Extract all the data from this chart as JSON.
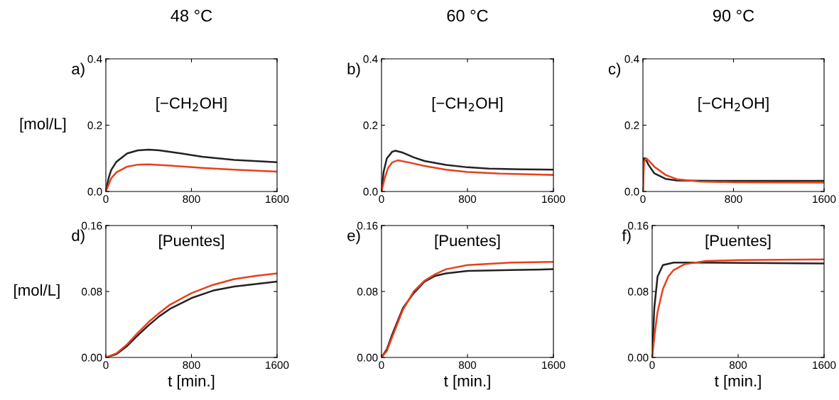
{
  "chart_data": [
    {
      "type": "line",
      "title": "48 °C",
      "ylabel": "[mol/L]",
      "annotations": [
        "a)",
        "[−CH$_{2}$OH]"
      ],
      "xlim": [
        0,
        1600
      ],
      "xticks": [
        0,
        800,
        1600
      ],
      "ylim": [
        0,
        0.4
      ],
      "yticks": [
        {
          "value": 0,
          "label": "0.0"
        },
        {
          "value": 0.2,
          "label": "0.2"
        },
        {
          "value": 0.4,
          "label": "0.4"
        }
      ],
      "grid": false,
      "legend": false,
      "series": [
        {
          "color": "#222222",
          "x": [
            0,
            25,
            50,
            100,
            200,
            300,
            400,
            500,
            700,
            900,
            1200,
            1600
          ],
          "values": [
            0,
            0.04,
            0.065,
            0.09,
            0.115,
            0.124,
            0.126,
            0.124,
            0.115,
            0.105,
            0.095,
            0.088
          ]
        },
        {
          "color": "#e8401c",
          "x": [
            0,
            50,
            100,
            200,
            300,
            400,
            600,
            900,
            1200,
            1600
          ],
          "values": [
            0,
            0.04,
            0.058,
            0.075,
            0.081,
            0.082,
            0.078,
            0.071,
            0.066,
            0.06
          ]
        }
      ]
    },
    {
      "type": "line",
      "title": "60 °C",
      "annotations": [
        "b)",
        "[−CH$_{2}$OH]"
      ],
      "xlim": [
        0,
        1600
      ],
      "xticks": [
        0,
        800,
        1600
      ],
      "ylim": [
        0,
        0.4
      ],
      "yticks": [
        {
          "value": 0,
          "label": "0.0"
        },
        {
          "value": 0.2,
          "label": "0.2"
        },
        {
          "value": 0.4,
          "label": "0.4"
        }
      ],
      "grid": false,
      "legend": false,
      "series": [
        {
          "color": "#222222",
          "x": [
            0,
            20,
            50,
            100,
            130,
            200,
            300,
            400,
            600,
            800,
            1000,
            1300,
            1600
          ],
          "values": [
            0,
            0.06,
            0.1,
            0.12,
            0.123,
            0.117,
            0.103,
            0.092,
            0.08,
            0.073,
            0.069,
            0.067,
            0.066
          ]
        },
        {
          "color": "#e8401c",
          "x": [
            0,
            30,
            60,
            100,
            150,
            250,
            400,
            600,
            800,
            1100,
            1600
          ],
          "values": [
            0,
            0.04,
            0.07,
            0.088,
            0.094,
            0.088,
            0.077,
            0.066,
            0.059,
            0.054,
            0.05
          ]
        }
      ]
    },
    {
      "type": "line",
      "title": "90 °C",
      "annotations": [
        "c)",
        "[−CH$_{2}$OH]"
      ],
      "xlim": [
        0,
        1600
      ],
      "xticks": [
        0,
        800,
        1600
      ],
      "ylim": [
        0,
        0.4
      ],
      "yticks": [
        {
          "value": 0,
          "label": "0.0"
        },
        {
          "value": 0.2,
          "label": "0.2"
        },
        {
          "value": 0.4,
          "label": "0.4"
        }
      ],
      "grid": false,
      "legend": false,
      "series": [
        {
          "color": "#222222",
          "x": [
            0,
            5,
            20,
            50,
            100,
            200,
            300,
            600,
            1600
          ],
          "values": [
            0,
            0.1,
            0.1,
            0.08,
            0.055,
            0.038,
            0.033,
            0.032,
            0.032
          ]
        },
        {
          "color": "#e8401c",
          "x": [
            0,
            10,
            30,
            60,
            100,
            200,
            300,
            500,
            800,
            1600
          ],
          "values": [
            0,
            0.09,
            0.1,
            0.09,
            0.075,
            0.05,
            0.037,
            0.03,
            0.028,
            0.027
          ]
        }
      ]
    },
    {
      "type": "line",
      "xlabel": "t [min.]",
      "ylabel": "[mol/L]",
      "annotations": [
        "d)",
        "[Puentes]"
      ],
      "xlim": [
        0,
        1600
      ],
      "xticks": [
        0,
        800,
        1600
      ],
      "ylim": [
        0,
        0.16
      ],
      "yticks": [
        {
          "value": 0,
          "label": "0.00"
        },
        {
          "value": 0.08,
          "label": "0.08"
        },
        {
          "value": 0.16,
          "label": "0.16"
        }
      ],
      "grid": false,
      "legend": false,
      "series": [
        {
          "color": "#222222",
          "x": [
            0,
            100,
            200,
            300,
            400,
            500,
            600,
            800,
            1000,
            1200,
            1400,
            1600
          ],
          "values": [
            0,
            0.004,
            0.014,
            0.027,
            0.039,
            0.05,
            0.059,
            0.072,
            0.081,
            0.086,
            0.089,
            0.092
          ]
        },
        {
          "color": "#e8401c",
          "x": [
            0,
            100,
            200,
            300,
            400,
            500,
            600,
            800,
            1000,
            1200,
            1400,
            1600
          ],
          "values": [
            0,
            0.005,
            0.016,
            0.03,
            0.043,
            0.054,
            0.064,
            0.078,
            0.088,
            0.095,
            0.099,
            0.102
          ]
        }
      ]
    },
    {
      "type": "line",
      "xlabel": "t [min.]",
      "annotations": [
        "e)",
        "[Puentes]"
      ],
      "xlim": [
        0,
        1600
      ],
      "xticks": [
        0,
        800,
        1600
      ],
      "ylim": [
        0,
        0.16
      ],
      "yticks": [
        {
          "value": 0,
          "label": "0.00"
        },
        {
          "value": 0.08,
          "label": "0.08"
        },
        {
          "value": 0.16,
          "label": "0.16"
        }
      ],
      "grid": false,
      "legend": false,
      "series": [
        {
          "color": "#222222",
          "x": [
            0,
            50,
            100,
            200,
            300,
            400,
            500,
            600,
            800,
            1200,
            1600
          ],
          "values": [
            0,
            0.01,
            0.028,
            0.06,
            0.078,
            0.092,
            0.099,
            0.102,
            0.105,
            0.106,
            0.107
          ]
        },
        {
          "color": "#e8401c",
          "x": [
            0,
            50,
            100,
            200,
            300,
            400,
            500,
            600,
            800,
            1200,
            1600
          ],
          "values": [
            0,
            0.008,
            0.025,
            0.058,
            0.08,
            0.093,
            0.101,
            0.107,
            0.112,
            0.115,
            0.116
          ]
        }
      ]
    },
    {
      "type": "line",
      "xlabel": "t [min.]",
      "annotations": [
        "f)",
        "[Puentes]"
      ],
      "xlim": [
        0,
        1600
      ],
      "xticks": [
        0,
        800,
        1600
      ],
      "ylim": [
        0,
        0.16
      ],
      "yticks": [
        {
          "value": 0,
          "label": "0.00"
        },
        {
          "value": 0.08,
          "label": "0.08"
        },
        {
          "value": 0.16,
          "label": "0.16"
        }
      ],
      "grid": false,
      "legend": false,
      "series": [
        {
          "color": "#222222",
          "x": [
            0,
            20,
            50,
            100,
            200,
            400,
            1600
          ],
          "values": [
            0,
            0.06,
            0.098,
            0.112,
            0.115,
            0.115,
            0.114
          ]
        },
        {
          "color": "#e8401c",
          "x": [
            0,
            25,
            50,
            100,
            150,
            200,
            300,
            500,
            800,
            1600
          ],
          "values": [
            0,
            0.03,
            0.055,
            0.083,
            0.098,
            0.106,
            0.113,
            0.117,
            0.118,
            0.119
          ]
        }
      ]
    }
  ]
}
